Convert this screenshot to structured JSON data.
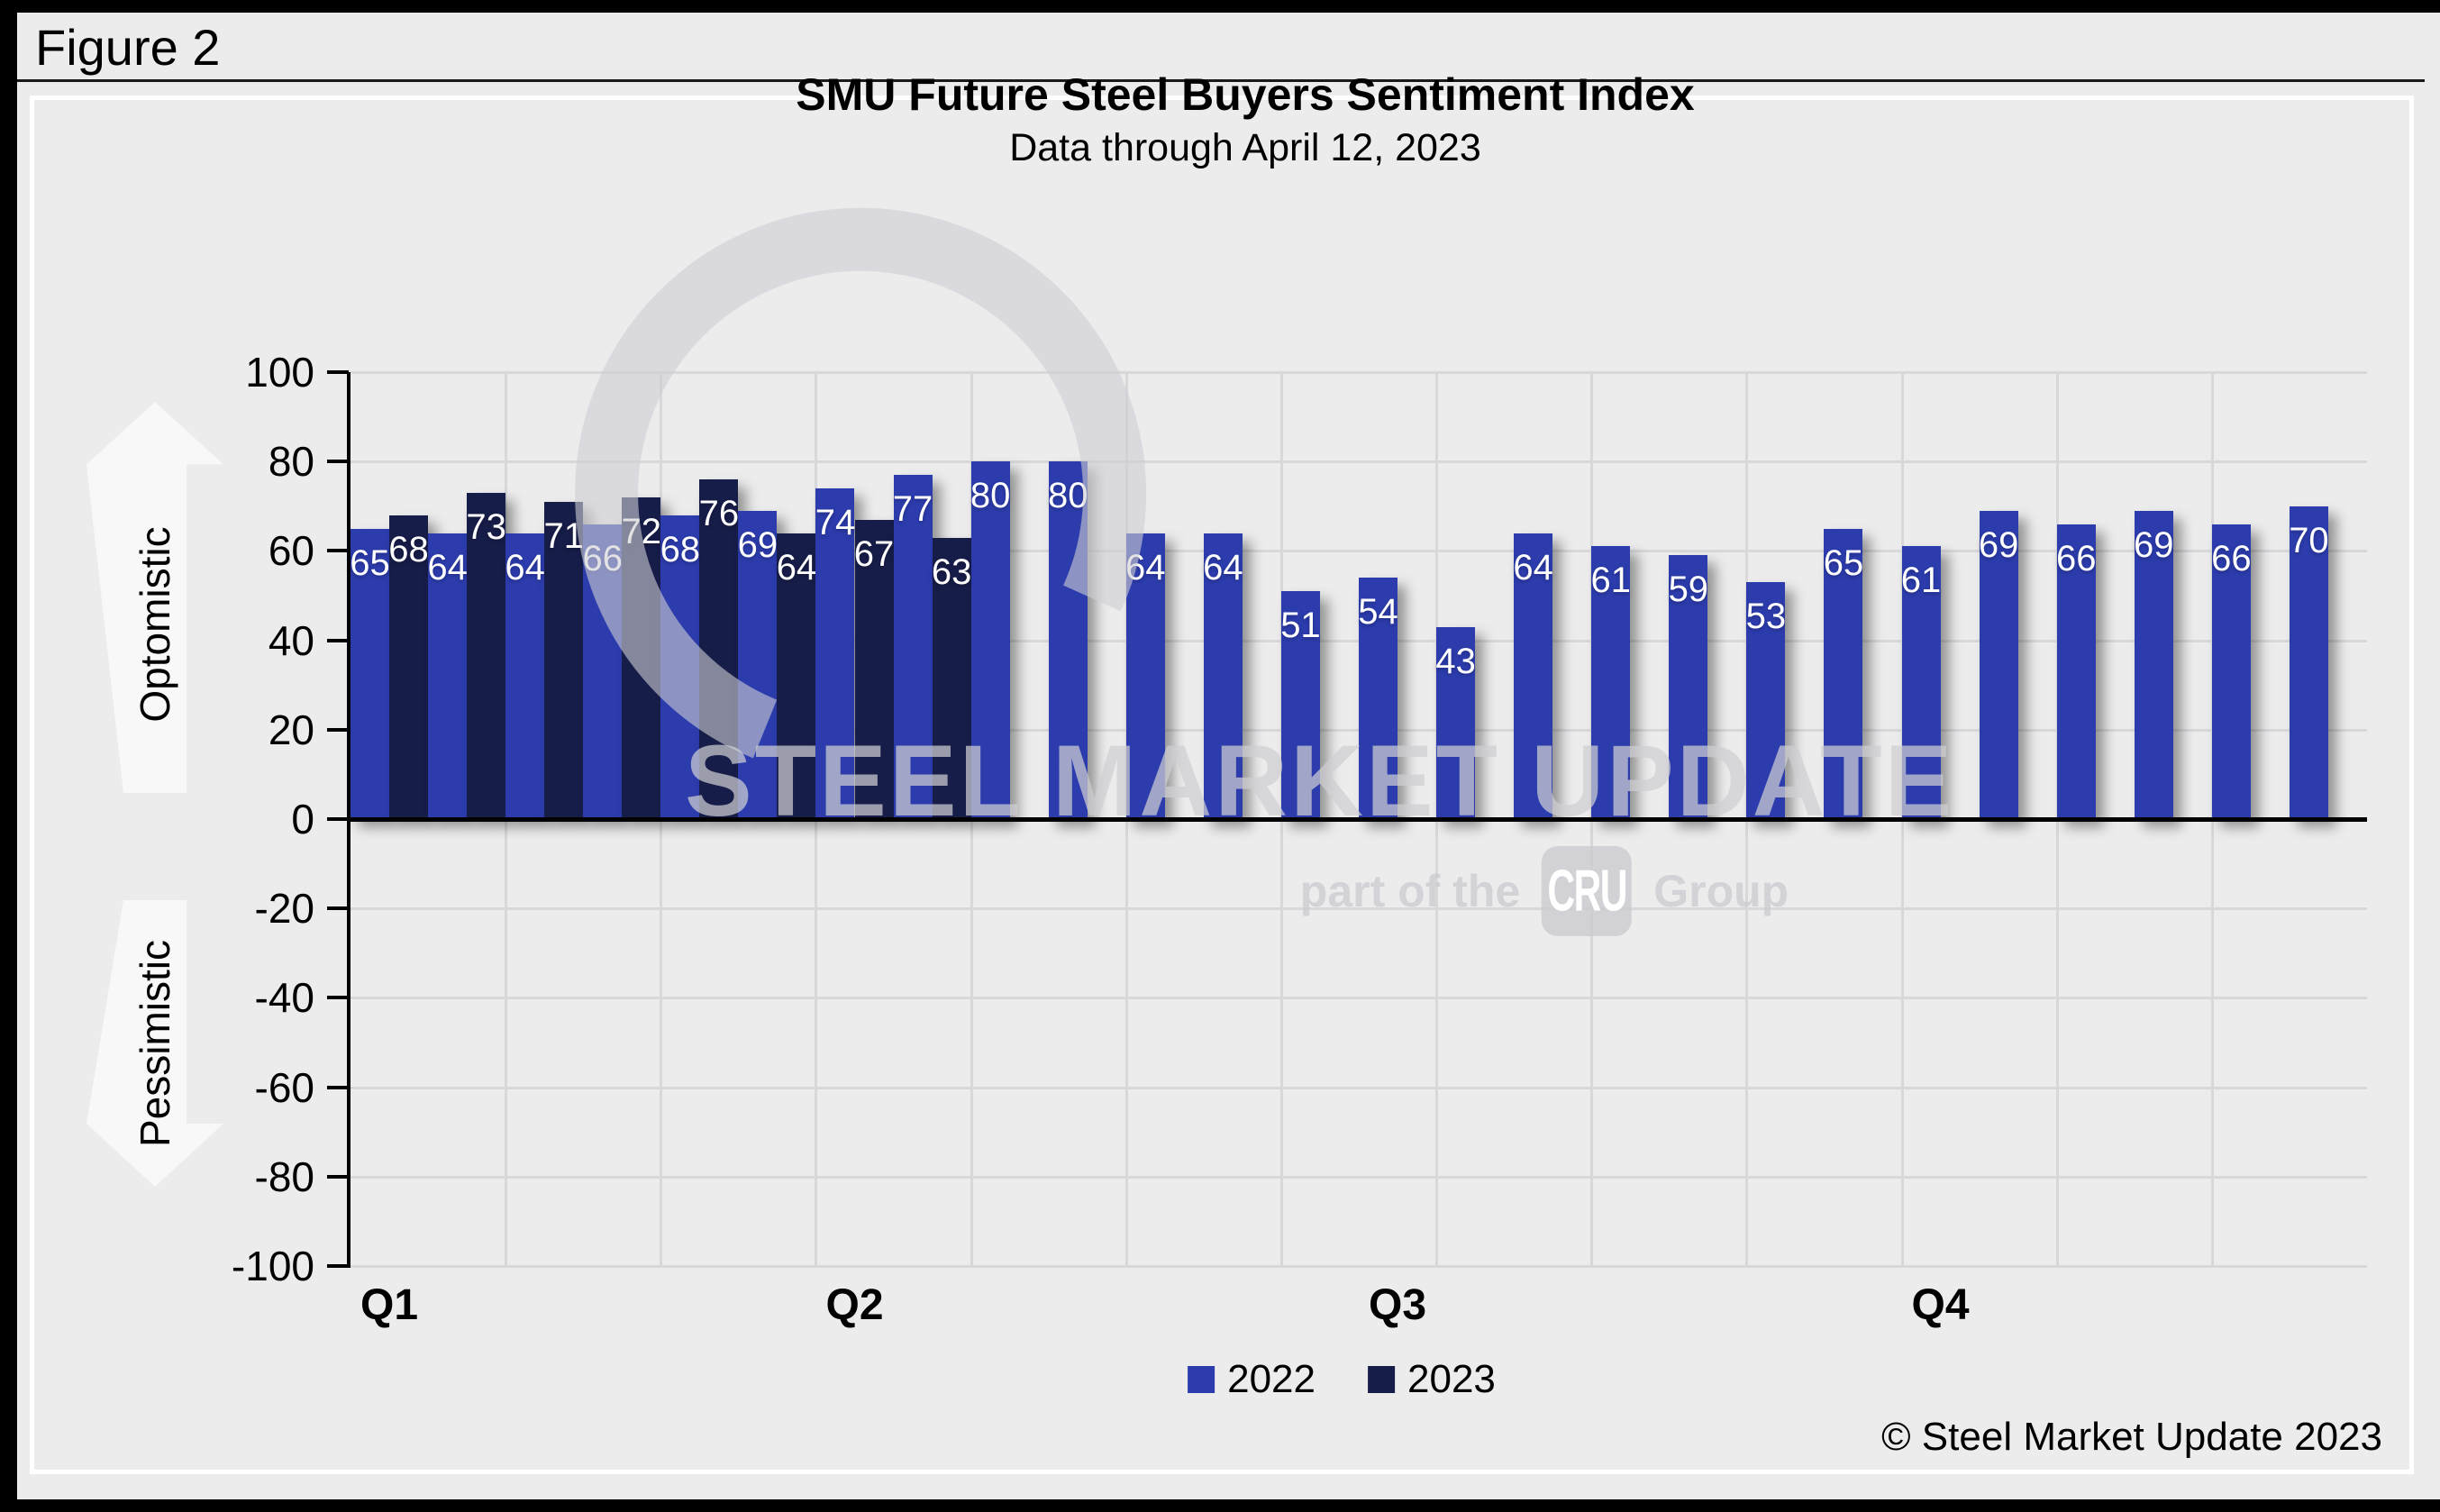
{
  "frame": {
    "figure_label": "Figure 2"
  },
  "header": {
    "title": "SMU Future Steel Buyers Sentiment Index",
    "subtitle": "Data through April 12, 2023"
  },
  "side_arrows": {
    "up_label": "Optomistic",
    "down_label": "Pessimistic"
  },
  "legend": {
    "items": [
      {
        "label": "2022",
        "color": "#2C3CAD"
      },
      {
        "label": "2023",
        "color": "#171D49"
      }
    ]
  },
  "watermark": {
    "line1": "STEEL MARKET UPDATE",
    "line2_prefix": "part of the",
    "line2_box": "CRU",
    "line2_suffix": "Group"
  },
  "footer": {
    "copyright": "© Steel Market Update 2023"
  },
  "chart_data": {
    "type": "bar",
    "title": "SMU Future Steel Buyers Sentiment Index",
    "subtitle": "Data through April 12, 2023",
    "ylim": [
      -100,
      100
    ],
    "y_tick_step": 20,
    "y_ticks": [
      100,
      80,
      60,
      40,
      20,
      0,
      -20,
      -40,
      -60,
      -80,
      -100
    ],
    "grid": true,
    "legend_position": "bottom",
    "categories_note": "26 biweekly survey slots per year; quarter markers under slots 1, 7, 14, 21",
    "quarter_labels": [
      "Q1",
      "Q2",
      "Q3",
      "Q4"
    ],
    "quarter_label_slots": [
      1,
      7,
      14,
      21
    ],
    "series": [
      {
        "name": "2022",
        "color": "#2C3CAD",
        "values": [
          65,
          64,
          64,
          66,
          68,
          69,
          74,
          77,
          80,
          80,
          64,
          64,
          51,
          54,
          43,
          64,
          61,
          59,
          53,
          65,
          61,
          69,
          66,
          69,
          66,
          70
        ]
      },
      {
        "name": "2023",
        "color": "#171D49",
        "values": [
          68,
          73,
          71,
          72,
          76,
          64,
          67,
          63,
          null,
          null,
          null,
          null,
          null,
          null,
          null,
          null,
          null,
          null,
          null,
          null,
          null,
          null,
          null,
          null,
          null,
          null
        ]
      }
    ]
  }
}
